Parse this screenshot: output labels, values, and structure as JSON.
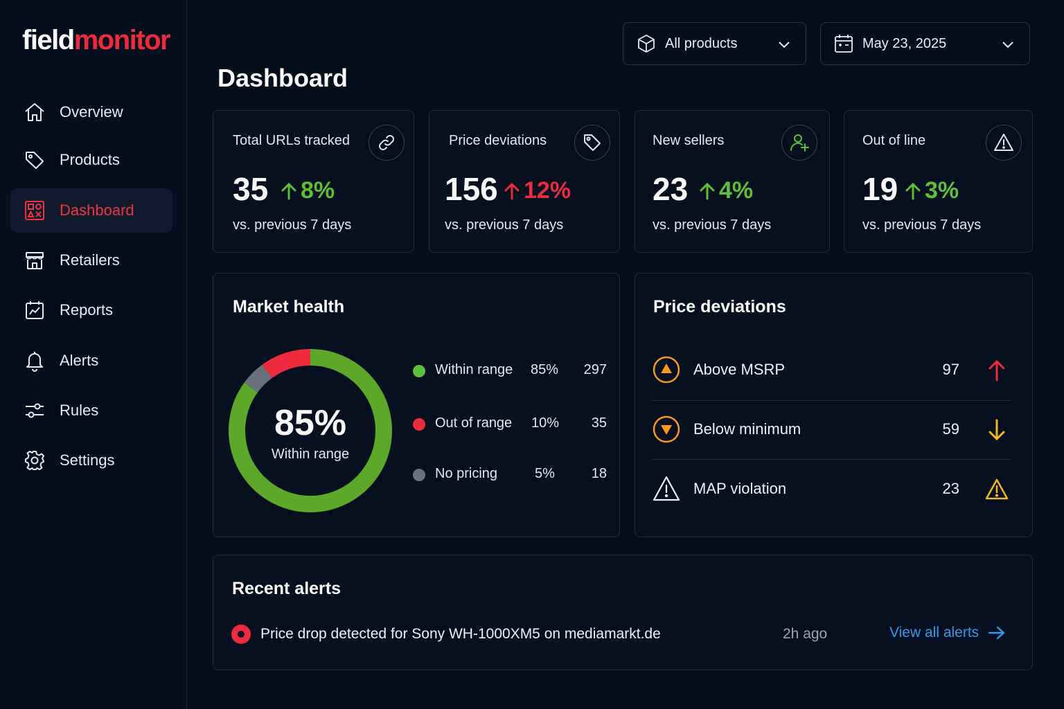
{
  "brand": {
    "part1": "field",
    "part2": "monitor"
  },
  "sidebar": {
    "items": [
      {
        "label": "Overview",
        "icon": "home-icon"
      },
      {
        "label": "Products",
        "icon": "tag-icon"
      },
      {
        "label": "Dashboard",
        "icon": "dashboard-icon",
        "active": true
      },
      {
        "label": "Retailers",
        "icon": "store-icon"
      },
      {
        "label": "Reports",
        "icon": "report-icon"
      },
      {
        "label": "Alerts",
        "icon": "bell-icon"
      },
      {
        "label": "Rules",
        "icon": "sliders-icon"
      },
      {
        "label": "Settings",
        "icon": "gear-icon"
      }
    ]
  },
  "filters": {
    "product": {
      "value": "All products",
      "icon": "box-icon"
    },
    "date": {
      "value": "May 23, 2025",
      "icon": "calendar-icon"
    }
  },
  "page": {
    "title": "Dashboard"
  },
  "kpis": [
    {
      "label": "Total URLs tracked",
      "value": "35",
      "change": "8%",
      "direction": "up",
      "tone": "positive",
      "sub": "vs. previous 7 days",
      "icon": "link-icon"
    },
    {
      "label": "Price deviations",
      "value": "156",
      "change": "12%",
      "direction": "up",
      "tone": "negative",
      "sub": "vs. previous 7 days",
      "icon": "price-tag-icon"
    },
    {
      "label": "New sellers",
      "value": "23",
      "change": "4%",
      "direction": "up",
      "tone": "positive",
      "sub": "vs. previous 7 days",
      "icon": "add-user-icon"
    },
    {
      "label": "Out of line",
      "value": "19",
      "change": "3%",
      "direction": "up",
      "tone": "positive",
      "sub": "vs. previous 7 days",
      "icon": "warning-icon"
    }
  ],
  "market_health": {
    "title": "Market health",
    "center_value": "85%",
    "center_label": "Within range",
    "segments": [
      {
        "name": "Within range",
        "pct": "85%",
        "count": "297",
        "share": 0.85,
        "color": "#5ba82a"
      },
      {
        "name": "Out of range",
        "pct": "10%",
        "count": "35",
        "share": 0.1,
        "color": "#ee2a3e"
      },
      {
        "name": "No pricing",
        "pct": "5%",
        "count": "18",
        "share": 0.05,
        "color": "#6b717c"
      }
    ]
  },
  "price_deviations": {
    "title": "Price deviations",
    "rows": [
      {
        "name": "Above MSRP",
        "count": "97",
        "icon": "triangle-up-circle-icon",
        "trend": "arrow-up-icon"
      },
      {
        "name": "Below minimum",
        "count": "59",
        "icon": "triangle-down-circle-icon",
        "trend": "arrow-down-icon"
      },
      {
        "name": "MAP violation",
        "count": "23",
        "icon": "warning-icon",
        "trend": "warning-icon"
      }
    ]
  },
  "recent_alerts": {
    "title": "Recent alerts",
    "items": [
      {
        "text": "Price drop detected for Sony WH-1000XM5 on mediamarkt.de",
        "time": "2h ago"
      }
    ],
    "view_all": "View all alerts"
  },
  "colors": {
    "accent": "#ee2a3e",
    "positive": "#5cc03b",
    "link": "#2f9bf0",
    "orange": "#f59a1c",
    "yellow": "#f5b81c"
  }
}
